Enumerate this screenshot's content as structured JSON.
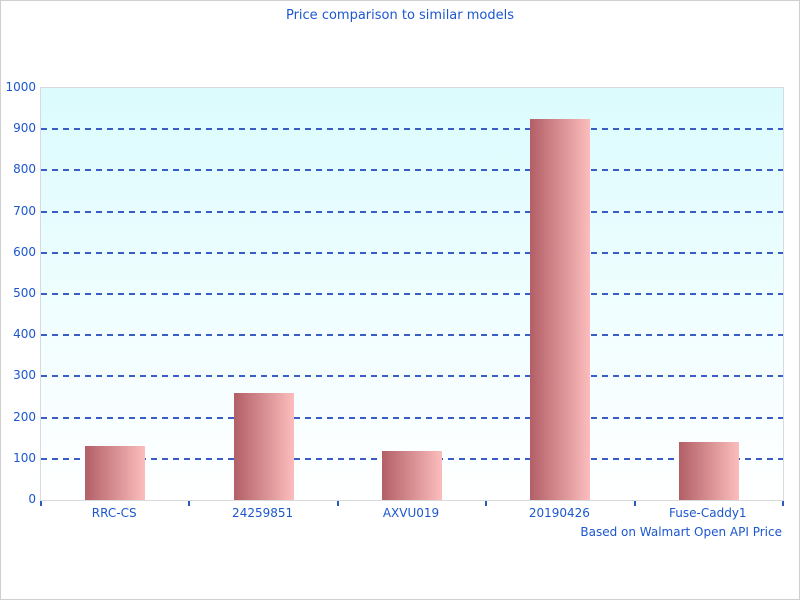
{
  "chart_data": {
    "type": "bar",
    "title": "Price comparison to similar models",
    "categories": [
      "RRC-CS",
      "24259851",
      "AXVU019",
      "20190426",
      "Fuse-Caddy1"
    ],
    "values": [
      130,
      260,
      118,
      925,
      140
    ],
    "xlabel": "",
    "ylabel": "",
    "ylim": [
      0,
      1000
    ],
    "ytick_interval": 100,
    "ytick_labels": [
      "0",
      "100",
      "200",
      "300",
      "400",
      "500",
      "600",
      "700",
      "800",
      "900",
      "1000"
    ],
    "grid": "horizontal-dashed",
    "legend": "none",
    "footnote": "Based on Walmart Open API Price"
  },
  "colors": {
    "title_text": "#1c57cf",
    "axis_label_text": "#1c57cf",
    "gridline": "#3a5cc5",
    "tick_mark": "#2a5ac0",
    "plot_bg_top": "#dbfbfd",
    "plot_bg_bottom": "#ffffff",
    "bar_gradient_left": "#b25f66",
    "bar_gradient_right": "#fcbdbd",
    "plot_border": "#d8dae0",
    "canvas_border": "#cfcfcf"
  }
}
